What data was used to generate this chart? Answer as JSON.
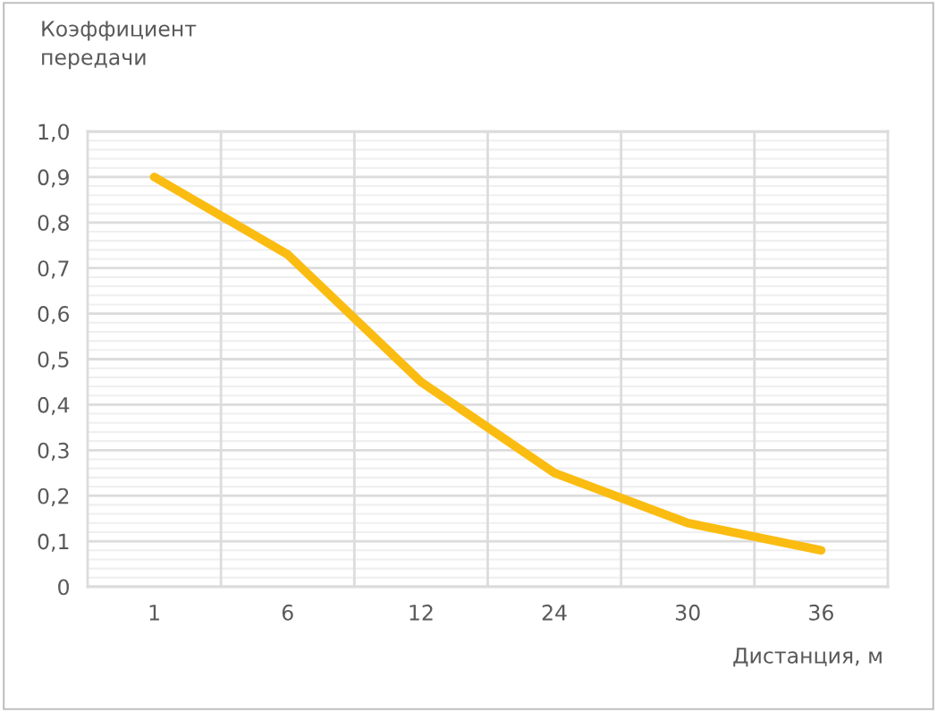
{
  "chart_data": {
    "type": "line",
    "xlabel": "Дистанция, м",
    "ylabel": "Коэффициент\nпередачи",
    "categories": [
      "1",
      "6",
      "12",
      "24",
      "30",
      "36"
    ],
    "series": [
      {
        "color": "#fbbc12",
        "values": [
          0.9,
          0.73,
          0.45,
          0.25,
          0.14,
          0.08
        ]
      }
    ],
    "ylim": [
      0,
      1.0
    ],
    "yticks": [
      0,
      {
        "value": 0.1,
        "label": "0,1"
      },
      {
        "value": 0.2,
        "label": "0,2"
      },
      {
        "value": 0.3,
        "label": "0,3"
      },
      {
        "value": 0.4,
        "label": "0,4"
      },
      {
        "value": 0.5,
        "label": "0,5"
      },
      {
        "value": 0.6,
        "label": "0,6"
      },
      {
        "value": 0.7,
        "label": "0,7"
      },
      {
        "value": 0.8,
        "label": "0,8"
      },
      {
        "value": 0.9,
        "label": "0,9"
      },
      {
        "value": 1.0,
        "label": "1,0"
      }
    ],
    "grid": true,
    "legend": false,
    "marker": "none",
    "line_style": "solid"
  }
}
